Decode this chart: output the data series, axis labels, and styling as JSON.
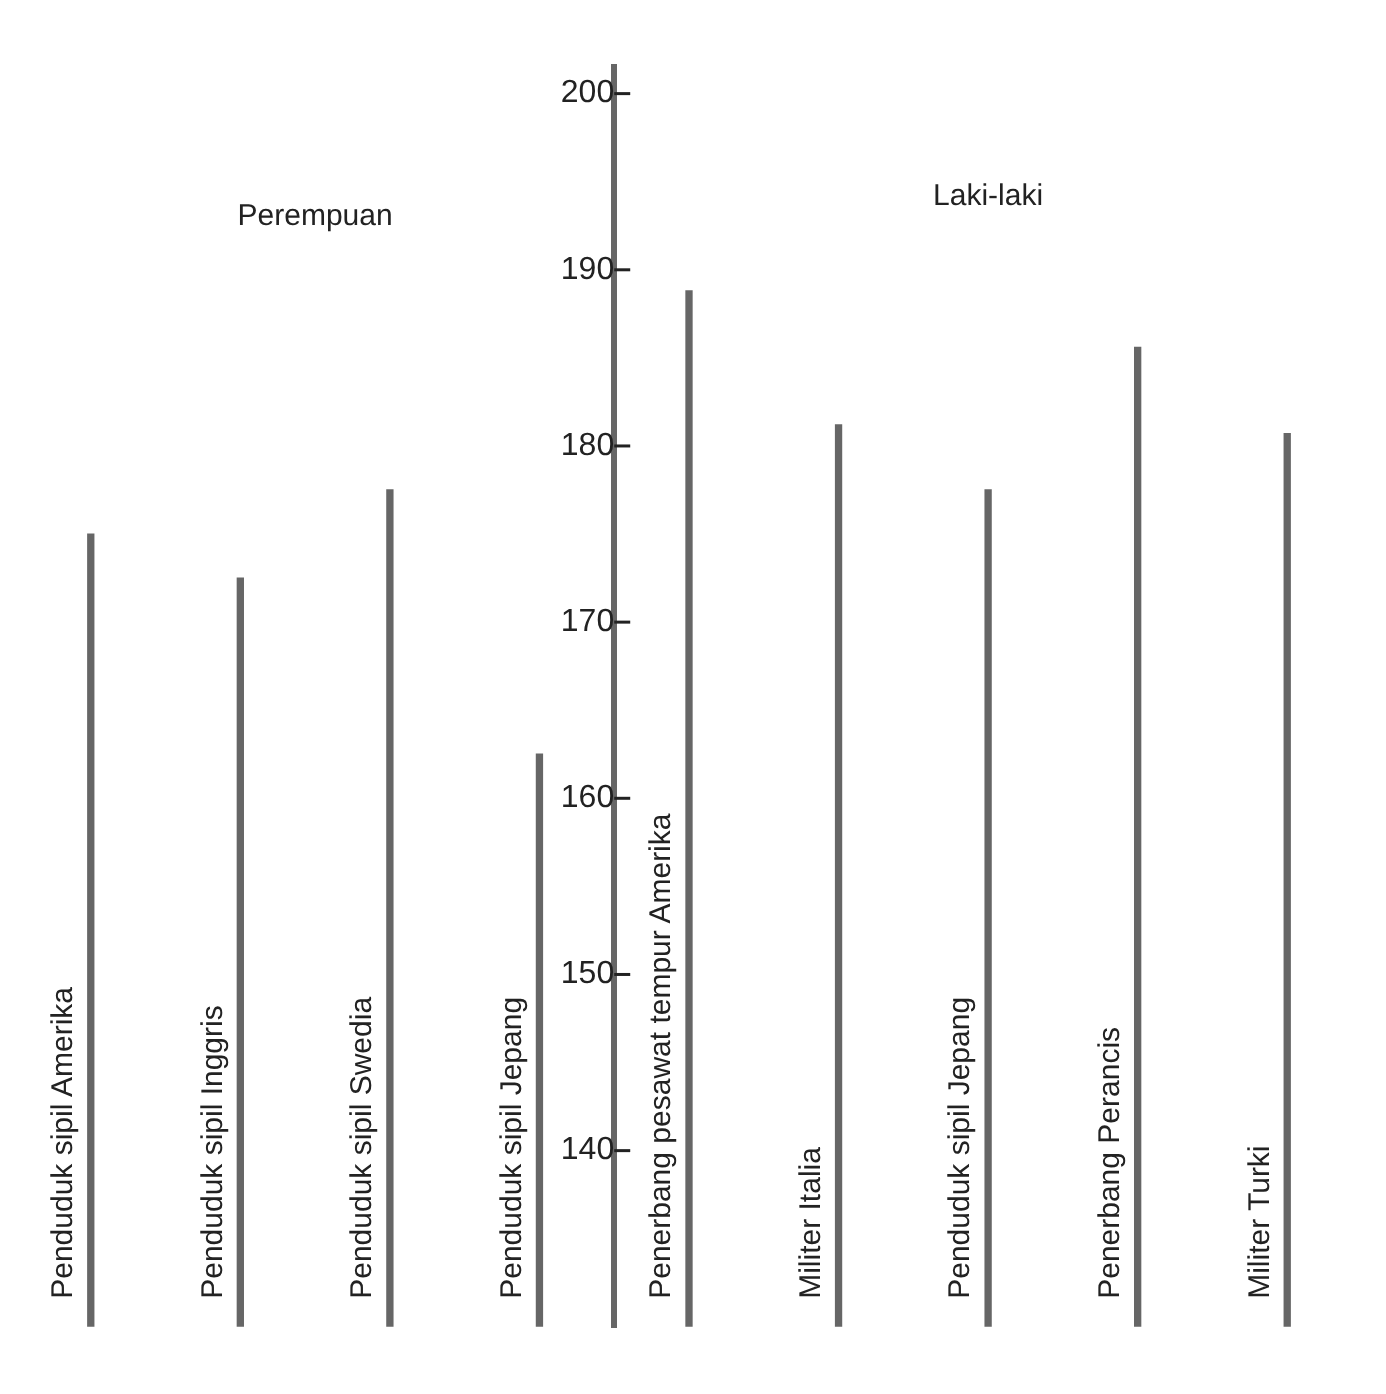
{
  "chart_data": {
    "type": "bar",
    "categories": [
      "Penduduk sipil Amerika",
      "Penduduk sipil Inggris",
      "Penduduk sipil Swedia",
      "Penduduk sipil Jepang",
      "Penerbang pesawat tempur Amerika",
      "Militer Italia",
      "Penduduk sipil Jepang",
      "Penerbang Perancis",
      "Militer Turki"
    ],
    "values": [
      175,
      172.5,
      177.5,
      162.5,
      188.8,
      181.2,
      177.5,
      185.6,
      180.7
    ],
    "color": "#666666",
    "ylim": [
      130,
      201.5
    ],
    "yticks": [
      140,
      150,
      160,
      170,
      180,
      190,
      200
    ],
    "annotations": [
      "Perempuan",
      "Laki-laki"
    ]
  }
}
